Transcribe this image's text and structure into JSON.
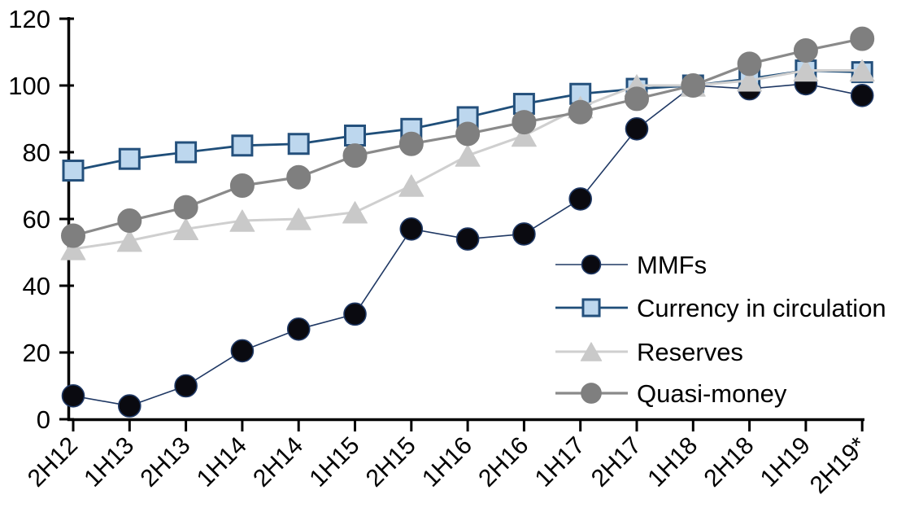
{
  "chart_data": {
    "type": "line",
    "title": "",
    "xlabel": "",
    "ylabel": "",
    "grid": false,
    "legend_position": "center-right",
    "ylim": [
      0,
      120
    ],
    "ytick_step": 20,
    "ytick_labels": [
      "0",
      "20",
      "40",
      "60",
      "80",
      "100",
      "120"
    ],
    "categories": [
      "2H12",
      "1H13",
      "2H13",
      "1H14",
      "2H14",
      "1H15",
      "2H15",
      "1H16",
      "2H16",
      "1H17",
      "2H17",
      "1H18",
      "2H18",
      "1H19",
      "2H19*"
    ],
    "series": [
      {
        "name": "MMFs",
        "marker": "circle",
        "marker_size": 27,
        "marker_fill": "#0a0a10",
        "marker_stroke": "#1f3864",
        "marker_stroke_width": 1.6,
        "line_color": "#1f3864",
        "line_width": 1.6,
        "values": [
          7,
          4,
          10,
          20.5,
          27,
          31.5,
          57,
          54,
          55.5,
          66,
          87,
          100,
          99,
          100.5,
          97
        ]
      },
      {
        "name": "Currency in circulation",
        "marker": "square",
        "marker_size": 26,
        "marker_fill": "#bdd7ee",
        "marker_stroke": "#24507c",
        "marker_stroke_width": 3,
        "line_color": "#1f4e79",
        "line_width": 2.8,
        "values": [
          74.5,
          78,
          80,
          82,
          82.5,
          85,
          87,
          90.5,
          94.5,
          97.5,
          99,
          100,
          102,
          104.5,
          104
        ]
      },
      {
        "name": "Reserves",
        "marker": "triangle",
        "marker_size": 30,
        "marker_fill": "#c9c9c9",
        "marker_stroke": "#c9c9c9",
        "marker_stroke_width": 1,
        "line_color": "#cfcfcf",
        "line_width": 3,
        "values": [
          51,
          53.5,
          57,
          59.5,
          60,
          62,
          70,
          79,
          85,
          93.5,
          100,
          100,
          101.5,
          104.5,
          104.5
        ]
      },
      {
        "name": "Quasi-money",
        "marker": "circle",
        "marker_size": 29,
        "marker_fill": "#7f7f7f",
        "marker_stroke": "#7f7f7f",
        "marker_stroke_width": 1,
        "line_color": "#8a8a8a",
        "line_width": 3.2,
        "values": [
          55,
          59.5,
          63.5,
          70,
          72.5,
          79,
          82.5,
          85.5,
          89,
          92,
          96,
          100,
          106.5,
          110.5,
          114
        ]
      }
    ],
    "axis_color": "#000000"
  }
}
